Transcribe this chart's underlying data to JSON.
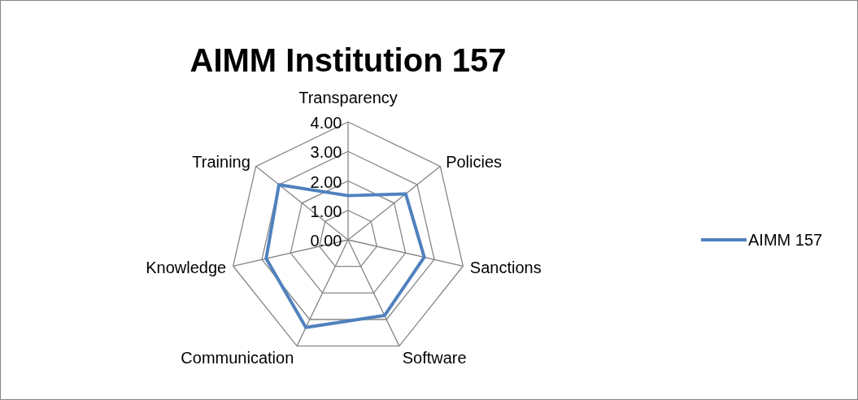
{
  "chart_data": {
    "type": "radar",
    "title": "AIMM Institution 157",
    "categories": [
      "Transparency",
      "Policies",
      "Sanctions",
      "Software",
      "Communication",
      "Knowledge",
      "Training"
    ],
    "series": [
      {
        "name": "AIMM 157",
        "color": "#4f81bd",
        "values": [
          1.5,
          2.5,
          2.65,
          2.85,
          3.3,
          2.85,
          3.0
        ]
      }
    ],
    "ylim": [
      0,
      4
    ],
    "yticks": [
      {
        "value": 0,
        "label": "0.00"
      },
      {
        "value": 1,
        "label": "1.00"
      },
      {
        "value": 2,
        "label": "2.00"
      },
      {
        "value": 3,
        "label": "3.00"
      },
      {
        "value": 4,
        "label": "4.00"
      }
    ],
    "grid": true,
    "legend": "right"
  }
}
